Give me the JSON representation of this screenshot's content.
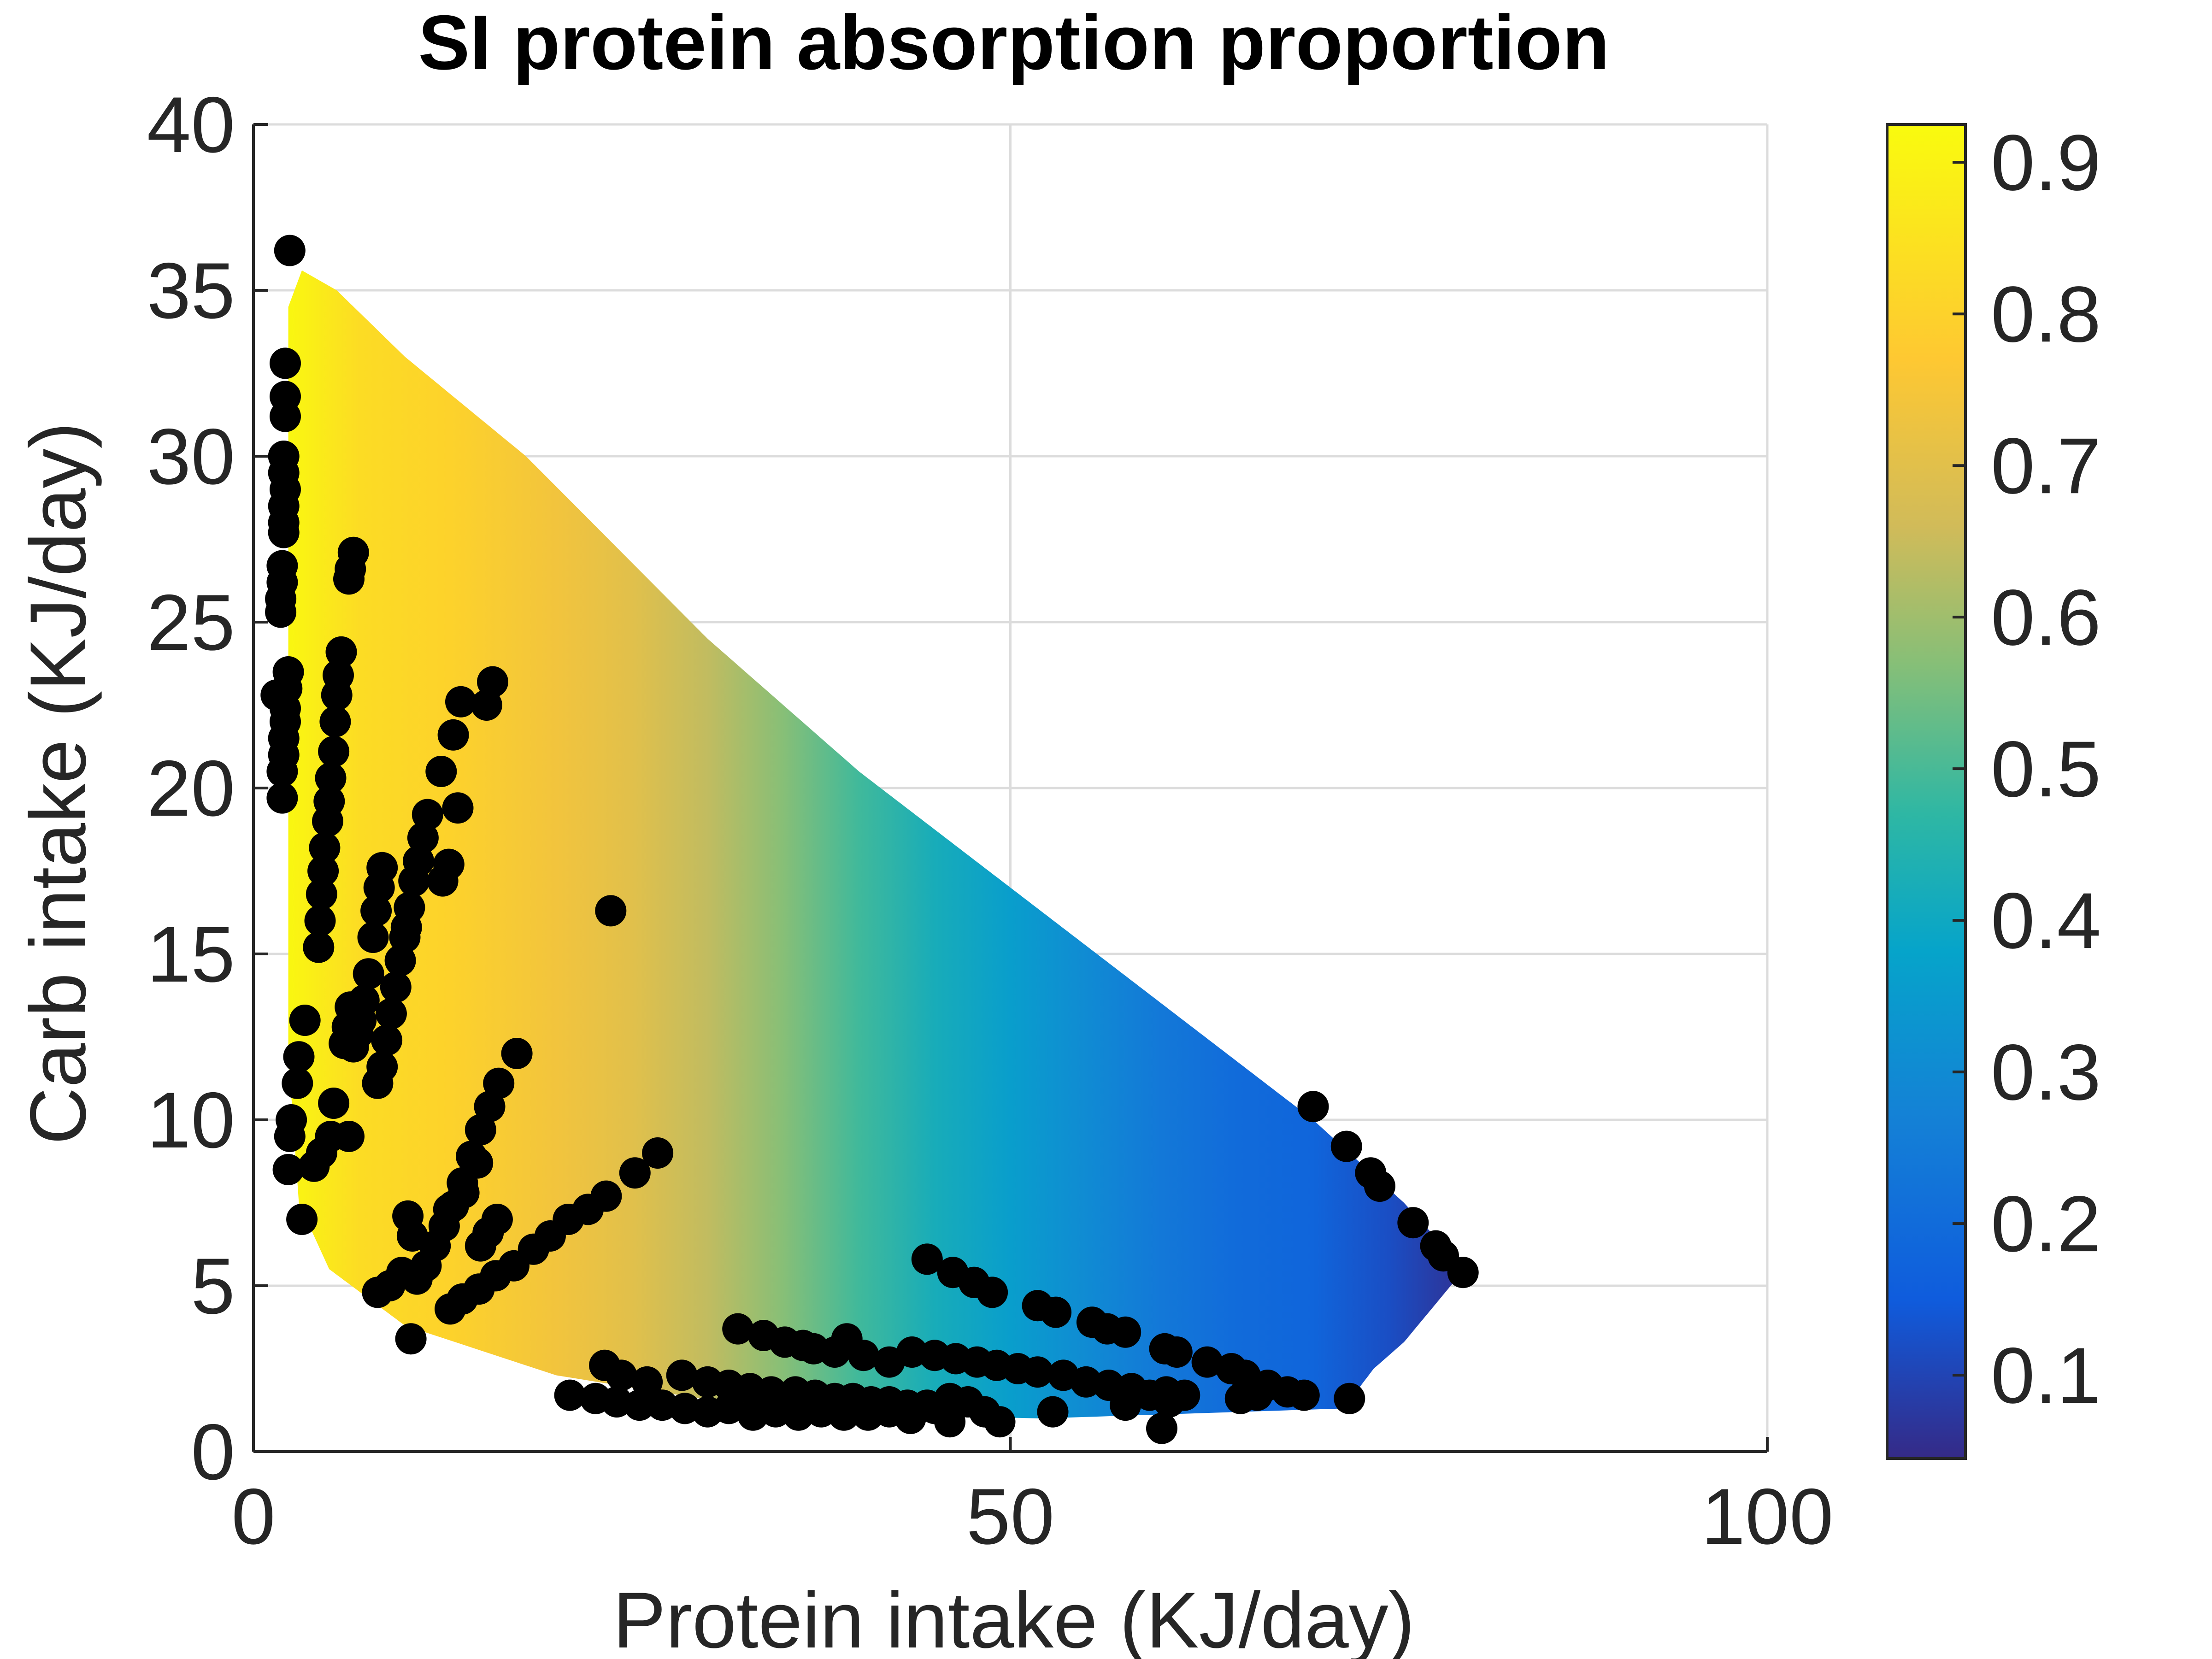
{
  "chart_data": {
    "type": "scatter",
    "title": "SI protein absorption proportion",
    "xlabel": "Protein intake (KJ/day)",
    "ylabel": "Carb intake (KJ/day)",
    "xlim": [
      0,
      100
    ],
    "ylim": [
      0,
      40
    ],
    "xticks": [
      0,
      50,
      100
    ],
    "yticks": [
      0,
      5,
      10,
      15,
      20,
      25,
      30,
      35,
      40
    ],
    "grid": true,
    "background_field": {
      "variable": "SI protein absorption proportion",
      "region_polygon": [
        [
          2.3,
          34.5
        ],
        [
          3.2,
          35.6
        ],
        [
          5.5,
          35.0
        ],
        [
          10,
          33.0
        ],
        [
          18,
          30.0
        ],
        [
          30,
          24.5
        ],
        [
          40,
          20.5
        ],
        [
          50,
          17.0
        ],
        [
          60,
          13.5
        ],
        [
          70,
          10.0
        ],
        [
          76,
          7.5
        ],
        [
          80,
          5.5
        ],
        [
          76,
          3.3
        ],
        [
          74,
          2.5
        ],
        [
          72,
          1.3
        ],
        [
          52,
          1.0
        ],
        [
          35,
          1.2
        ],
        [
          20,
          2.3
        ],
        [
          10,
          3.8
        ],
        [
          5,
          5.5
        ],
        [
          3,
          7.5
        ],
        [
          2.3,
          12.0
        ]
      ],
      "color_stops": [
        [
          2,
          0.92
        ],
        [
          7,
          0.83
        ],
        [
          13,
          0.8
        ],
        [
          20,
          0.74
        ],
        [
          25,
          0.7
        ],
        [
          30,
          0.64
        ],
        [
          35,
          0.57
        ],
        [
          40,
          0.49
        ],
        [
          45,
          0.42
        ],
        [
          50,
          0.36
        ],
        [
          55,
          0.3
        ],
        [
          60,
          0.24
        ],
        [
          65,
          0.2
        ],
        [
          70,
          0.18
        ],
        [
          75,
          0.12
        ],
        [
          80,
          0.06
        ]
      ]
    },
    "colorbar": {
      "ticks": [
        "0.1",
        "0.2",
        "0.3",
        "0.4",
        "0.5",
        "0.6",
        "0.7",
        "0.8",
        "0.9"
      ],
      "tick_values": [
        0.1,
        0.2,
        0.3,
        0.4,
        0.5,
        0.6,
        0.7,
        0.8,
        0.9
      ],
      "range": [
        0.045,
        0.925
      ],
      "colormap_stops": [
        {
          "v": 0.045,
          "color": "#352a87"
        },
        {
          "v": 0.15,
          "color": "#0f5cdd"
        },
        {
          "v": 0.27,
          "color": "#1481d6"
        },
        {
          "v": 0.38,
          "color": "#06a4ca"
        },
        {
          "v": 0.47,
          "color": "#2eb7a4"
        },
        {
          "v": 0.57,
          "color": "#87bf77"
        },
        {
          "v": 0.66,
          "color": "#d1bb59"
        },
        {
          "v": 0.77,
          "color": "#fec832"
        },
        {
          "v": 0.925,
          "color": "#f9fb0e"
        }
      ]
    },
    "series": [
      {
        "marker_color": "#000000",
        "points": [
          [
            2.4,
            36.2
          ],
          [
            2.1,
            32.8
          ],
          [
            2.1,
            31.8
          ],
          [
            2.1,
            31.2
          ],
          [
            2.0,
            30.0
          ],
          [
            2.0,
            29.5
          ],
          [
            2.1,
            29.0
          ],
          [
            2.0,
            28.5
          ],
          [
            2.0,
            28.0
          ],
          [
            2.0,
            27.7
          ],
          [
            1.9,
            26.7
          ],
          [
            1.9,
            26.2
          ],
          [
            1.8,
            25.7
          ],
          [
            1.8,
            25.3
          ],
          [
            2.3,
            23.5
          ],
          [
            2.2,
            23.0
          ],
          [
            2.1,
            22.4
          ],
          [
            2.1,
            22.0
          ],
          [
            2.0,
            21.5
          ],
          [
            2.0,
            21.0
          ],
          [
            1.9,
            20.5
          ],
          [
            1.9,
            19.7
          ],
          [
            1.5,
            22.8
          ],
          [
            6.6,
            27.1
          ],
          [
            6.4,
            26.6
          ],
          [
            6.3,
            26.3
          ],
          [
            5.8,
            24.1
          ],
          [
            5.6,
            23.4
          ],
          [
            5.5,
            22.8
          ],
          [
            5.4,
            22.0
          ],
          [
            5.3,
            21.1
          ],
          [
            5.1,
            20.3
          ],
          [
            5.0,
            19.6
          ],
          [
            4.9,
            19.0
          ],
          [
            4.7,
            18.2
          ],
          [
            4.6,
            17.5
          ],
          [
            4.5,
            16.8
          ],
          [
            4.4,
            16.0
          ],
          [
            4.3,
            15.2
          ],
          [
            8.5,
            17.6
          ],
          [
            8.3,
            17.0
          ],
          [
            8.1,
            16.3
          ],
          [
            7.9,
            15.5
          ],
          [
            7.6,
            14.4
          ],
          [
            7.3,
            13.6
          ],
          [
            7.1,
            13.0
          ],
          [
            6.9,
            12.6
          ],
          [
            6.6,
            12.2
          ],
          [
            6.4,
            13.4
          ],
          [
            6.2,
            12.8
          ],
          [
            6.0,
            12.3
          ],
          [
            11.5,
            19.2
          ],
          [
            11.2,
            18.5
          ],
          [
            10.9,
            17.8
          ],
          [
            10.6,
            17.2
          ],
          [
            10.3,
            16.4
          ],
          [
            10.0,
            15.5
          ],
          [
            9.7,
            14.8
          ],
          [
            9.4,
            14.0
          ],
          [
            9.1,
            13.2
          ],
          [
            8.8,
            12.4
          ],
          [
            8.5,
            11.6
          ],
          [
            8.2,
            11.1
          ],
          [
            12.9,
            17.7
          ],
          [
            12.5,
            17.2
          ],
          [
            10.1,
            15.8
          ],
          [
            13.5,
            19.4
          ],
          [
            15.8,
            23.2
          ],
          [
            15.4,
            22.5
          ],
          [
            13.7,
            22.6
          ],
          [
            13.2,
            21.6
          ],
          [
            12.4,
            20.5
          ],
          [
            3.4,
            13.0
          ],
          [
            3.0,
            11.9
          ],
          [
            2.9,
            11.1
          ],
          [
            2.5,
            10.0
          ],
          [
            2.4,
            9.5
          ],
          [
            2.3,
            8.5
          ],
          [
            3.2,
            7.0
          ],
          [
            4.0,
            8.6
          ],
          [
            4.5,
            9.0
          ],
          [
            5.1,
            9.5
          ],
          [
            5.3,
            10.5
          ],
          [
            6.3,
            9.5
          ],
          [
            23.6,
            16.3
          ],
          [
            17.4,
            12.0
          ],
          [
            16.2,
            11.1
          ],
          [
            15.6,
            10.4
          ],
          [
            15.0,
            9.7
          ],
          [
            14.4,
            8.9
          ],
          [
            13.8,
            8.1
          ],
          [
            13.2,
            7.4
          ],
          [
            12.6,
            6.8
          ],
          [
            12.0,
            6.2
          ],
          [
            11.4,
            5.6
          ],
          [
            10.8,
            5.2
          ],
          [
            10.2,
            7.1
          ],
          [
            10.5,
            6.5
          ],
          [
            9.8,
            5.4
          ],
          [
            9.0,
            5.0
          ],
          [
            8.2,
            4.8
          ],
          [
            14.8,
            8.7
          ],
          [
            13.9,
            7.8
          ],
          [
            12.9,
            7.3
          ],
          [
            16.1,
            7.0
          ],
          [
            15.5,
            6.6
          ],
          [
            15.0,
            6.2
          ],
          [
            26.7,
            9.0
          ],
          [
            25.2,
            8.4
          ],
          [
            23.3,
            7.7
          ],
          [
            22.1,
            7.3
          ],
          [
            20.8,
            7.0
          ],
          [
            19.6,
            6.5
          ],
          [
            18.5,
            6.1
          ],
          [
            17.2,
            5.6
          ],
          [
            16.0,
            5.3
          ],
          [
            14.9,
            4.9
          ],
          [
            13.8,
            4.6
          ],
          [
            13.0,
            4.3
          ],
          [
            10.4,
            3.4
          ],
          [
            70.0,
            10.4
          ],
          [
            72.2,
            9.2
          ],
          [
            73.8,
            8.4
          ],
          [
            74.4,
            8.0
          ],
          [
            76.6,
            6.9
          ],
          [
            78.1,
            6.2
          ],
          [
            78.6,
            5.9
          ],
          [
            79.9,
            5.4
          ],
          [
            44.5,
            5.8
          ],
          [
            46.2,
            5.4
          ],
          [
            47.6,
            5.1
          ],
          [
            48.8,
            4.8
          ],
          [
            51.8,
            4.4
          ],
          [
            53.0,
            4.2
          ],
          [
            55.4,
            3.9
          ],
          [
            56.4,
            3.7
          ],
          [
            57.6,
            3.6
          ],
          [
            60.2,
            3.1
          ],
          [
            61.0,
            3.0
          ],
          [
            32.0,
            3.7
          ],
          [
            33.7,
            3.5
          ],
          [
            35.1,
            3.3
          ],
          [
            36.3,
            3.2
          ],
          [
            37.0,
            3.1
          ],
          [
            38.4,
            3.0
          ],
          [
            39.2,
            3.4
          ],
          [
            40.3,
            2.9
          ],
          [
            42.0,
            2.7
          ],
          [
            43.5,
            3.0
          ],
          [
            45.0,
            2.9
          ],
          [
            46.4,
            2.8
          ],
          [
            47.8,
            2.7
          ],
          [
            49.1,
            2.6
          ],
          [
            50.5,
            2.5
          ],
          [
            51.8,
            2.4
          ],
          [
            53.5,
            2.3
          ],
          [
            55.0,
            2.1
          ],
          [
            56.5,
            2.0
          ],
          [
            58.0,
            1.9
          ],
          [
            59.2,
            1.7
          ],
          [
            60.3,
            1.8
          ],
          [
            61.5,
            1.7
          ],
          [
            63.0,
            2.7
          ],
          [
            64.6,
            2.5
          ],
          [
            65.5,
            2.3
          ],
          [
            67.0,
            2.0
          ],
          [
            68.3,
            1.8
          ],
          [
            69.4,
            1.7
          ],
          [
            72.4,
            1.6
          ],
          [
            23.2,
            2.6
          ],
          [
            24.3,
            2.3
          ],
          [
            26.0,
            2.1
          ],
          [
            28.3,
            2.3
          ],
          [
            30.0,
            2.1
          ],
          [
            31.4,
            2.0
          ],
          [
            32.8,
            1.9
          ],
          [
            34.2,
            1.8
          ],
          [
            35.8,
            1.8
          ],
          [
            37.1,
            1.7
          ],
          [
            38.4,
            1.6
          ],
          [
            39.6,
            1.6
          ],
          [
            40.8,
            1.5
          ],
          [
            42.0,
            1.5
          ],
          [
            43.2,
            1.4
          ],
          [
            44.5,
            1.4
          ],
          [
            46.0,
            1.6
          ],
          [
            47.2,
            1.5
          ],
          [
            20.9,
            1.7
          ],
          [
            22.6,
            1.6
          ],
          [
            24.0,
            1.5
          ],
          [
            25.5,
            1.4
          ],
          [
            27.0,
            1.4
          ],
          [
            28.5,
            1.3
          ],
          [
            30.0,
            1.2
          ],
          [
            31.4,
            1.3
          ],
          [
            33.0,
            1.1
          ],
          [
            34.5,
            1.2
          ],
          [
            36.0,
            1.1
          ],
          [
            37.5,
            1.2
          ],
          [
            39.0,
            1.1
          ],
          [
            40.6,
            1.1
          ],
          [
            42.0,
            1.2
          ],
          [
            43.4,
            1.0
          ],
          [
            45.0,
            1.3
          ],
          [
            46.0,
            0.9
          ],
          [
            48.3,
            1.2
          ],
          [
            49.3,
            0.9
          ],
          [
            52.8,
            1.2
          ],
          [
            57.6,
            1.4
          ],
          [
            60.5,
            1.5
          ],
          [
            65.2,
            1.6
          ],
          [
            66.3,
            1.7
          ],
          [
            60.0,
            0.7
          ]
        ]
      }
    ]
  }
}
